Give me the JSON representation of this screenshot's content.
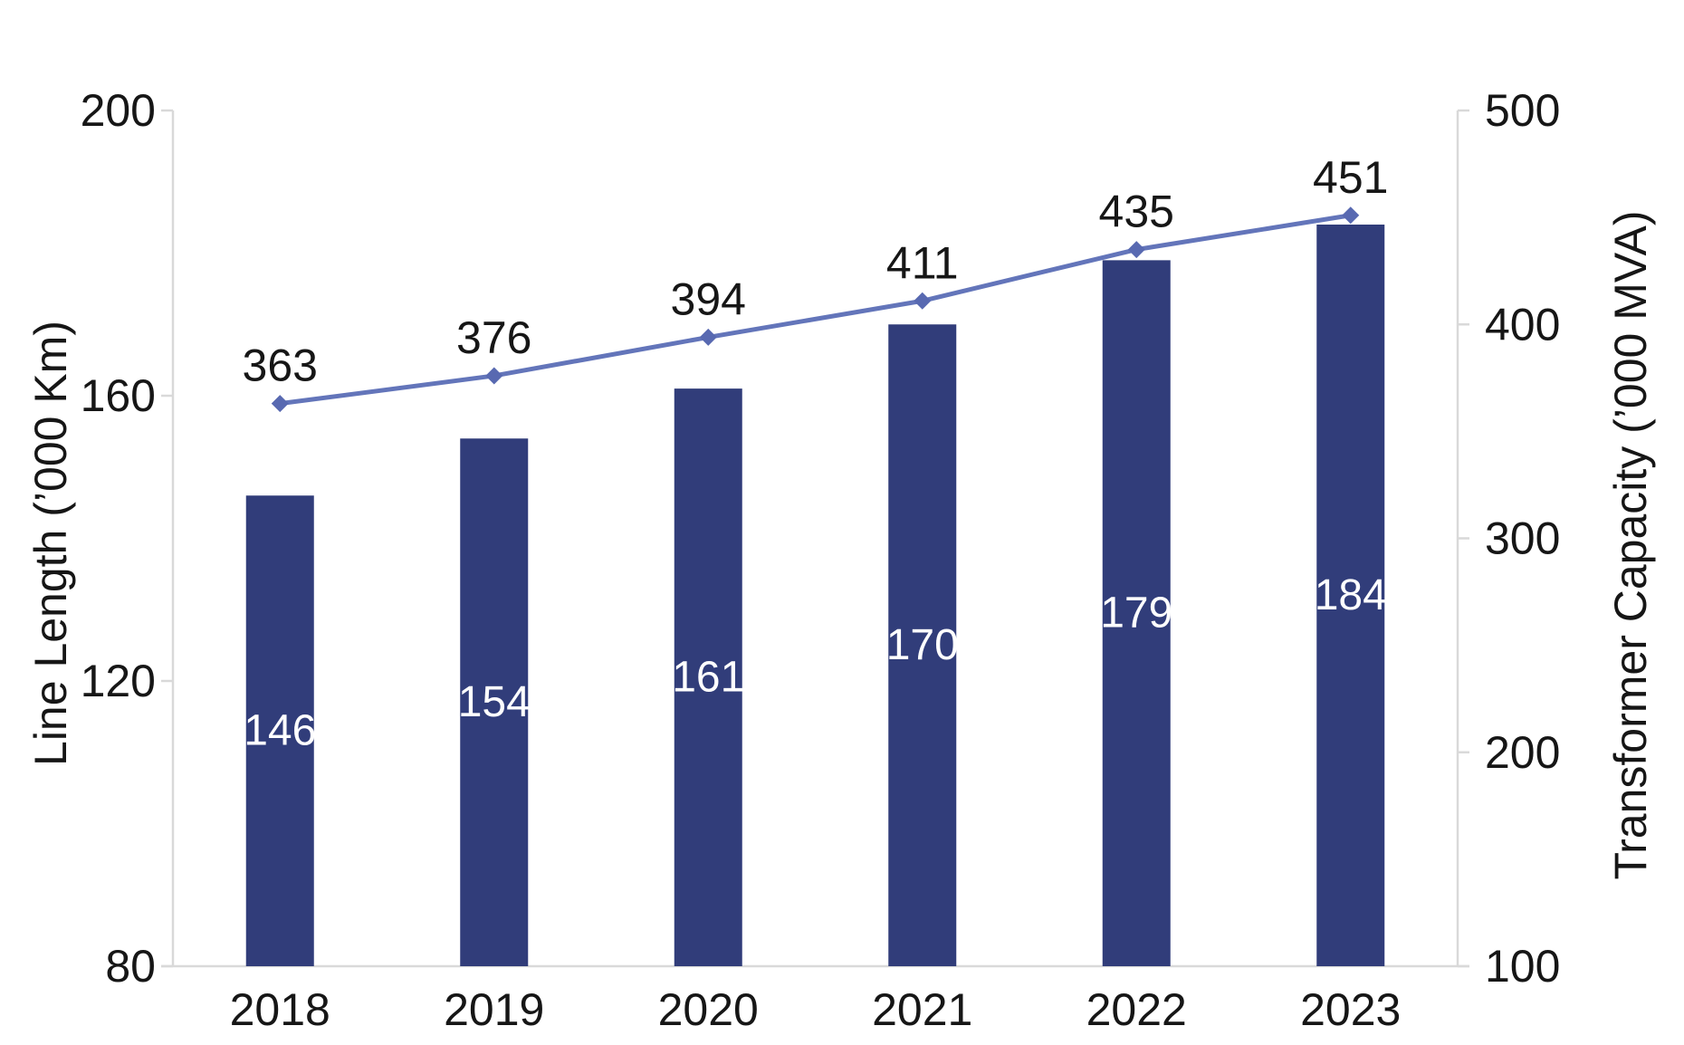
{
  "chart_data": {
    "type": "combo-bar-line",
    "categories": [
      "2018",
      "2019",
      "2020",
      "2021",
      "2022",
      "2023"
    ],
    "series": [
      {
        "name": "Line Length (’000 Km)",
        "chart": "bar",
        "axis": "left",
        "values": [
          146,
          154,
          161,
          170,
          179,
          184
        ],
        "color": "#313D7A",
        "data_label_color": "#FFFFFF"
      },
      {
        "name": "Transformer Capacity (’000 MVA)",
        "chart": "line",
        "axis": "right",
        "values": [
          363,
          376,
          394,
          411,
          435,
          451
        ],
        "color": "#6375BA",
        "marker": "diamond",
        "marker_color": "#5869B1",
        "data_label_color": "#161616"
      }
    ],
    "axes": {
      "left": {
        "title": "Line Length (’000 Km)",
        "min": 80,
        "max": 200,
        "ticks": [
          80,
          120,
          160,
          200
        ]
      },
      "right": {
        "title": "Transformer Capacity (’000 MVA)",
        "min": 100,
        "max": 500,
        "ticks": [
          100,
          200,
          300,
          400,
          500
        ]
      }
    },
    "grid": false,
    "legend": false,
    "background": "#FFFFFF",
    "axis_line_color": "#D9D9D9",
    "text_color": "#161616"
  }
}
